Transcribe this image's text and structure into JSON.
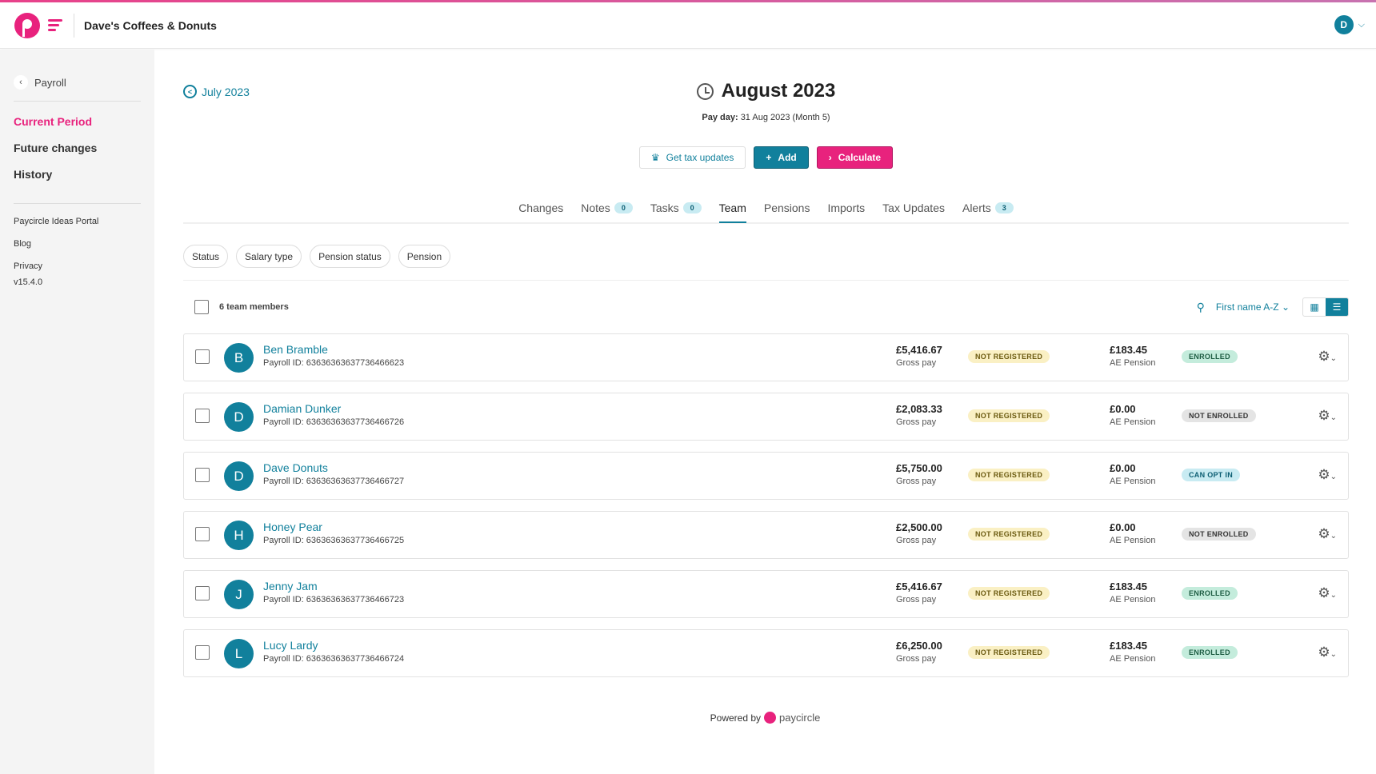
{
  "header": {
    "company": "Dave's Coffees & Donuts",
    "user_initial": "D"
  },
  "sidebar": {
    "back": "Payroll",
    "nav": [
      "Current Period",
      "Future changes",
      "History"
    ],
    "links": [
      "Paycircle Ideas Portal",
      "Blog",
      "Privacy"
    ],
    "version": "v15.4.0"
  },
  "period": {
    "previous": "July 2023",
    "title": "August 2023",
    "payday_label": "Pay day:",
    "payday_value": "31 Aug 2023 (Month 5)"
  },
  "actions": {
    "tax": "Get tax updates",
    "add": "Add",
    "calculate": "Calculate"
  },
  "tabs": [
    {
      "label": "Changes"
    },
    {
      "label": "Notes",
      "count": "0"
    },
    {
      "label": "Tasks",
      "count": "0"
    },
    {
      "label": "Team",
      "active": true
    },
    {
      "label": "Pensions"
    },
    {
      "label": "Imports"
    },
    {
      "label": "Tax Updates"
    },
    {
      "label": "Alerts",
      "count": "3"
    }
  ],
  "filters": [
    "Status",
    "Salary type",
    "Pension status",
    "Pension"
  ],
  "list": {
    "count_label": "6 team members",
    "sort": "First name A-Z"
  },
  "labels": {
    "gross": "Gross pay",
    "pension": "AE Pension",
    "payroll_prefix": "Payroll ID: "
  },
  "colors": {
    "accent": "#11809c",
    "brand": "#e8227d",
    "not_registered": "#faf0c4",
    "enrolled": "#c4ecdc",
    "not_enrolled": "#e4e4e4",
    "can_opt_in": "#c8ebf2"
  },
  "members": [
    {
      "initial": "B",
      "name": "Ben Bramble",
      "payroll_id": "63636363637736466623",
      "gross": "£5,416.67",
      "status": "NOT REGISTERED",
      "pension": "£183.45",
      "pension_status": "ENROLLED"
    },
    {
      "initial": "D",
      "name": "Damian Dunker",
      "payroll_id": "63636363637736466726",
      "gross": "£2,083.33",
      "status": "NOT REGISTERED",
      "pension": "£0.00",
      "pension_status": "NOT ENROLLED"
    },
    {
      "initial": "D",
      "name": "Dave Donuts",
      "payroll_id": "63636363637736466727",
      "gross": "£5,750.00",
      "status": "NOT REGISTERED",
      "pension": "£0.00",
      "pension_status": "CAN OPT IN"
    },
    {
      "initial": "H",
      "name": "Honey Pear",
      "payroll_id": "63636363637736466725",
      "gross": "£2,500.00",
      "status": "NOT REGISTERED",
      "pension": "£0.00",
      "pension_status": "NOT ENROLLED"
    },
    {
      "initial": "J",
      "name": "Jenny Jam",
      "payroll_id": "63636363637736466723",
      "gross": "£5,416.67",
      "status": "NOT REGISTERED",
      "pension": "£183.45",
      "pension_status": "ENROLLED"
    },
    {
      "initial": "L",
      "name": "Lucy Lardy",
      "payroll_id": "63636363637736466724",
      "gross": "£6,250.00",
      "status": "NOT REGISTERED",
      "pension": "£183.45",
      "pension_status": "ENROLLED"
    }
  ],
  "footer": {
    "powered": "Powered by",
    "brand": "paycircle"
  }
}
